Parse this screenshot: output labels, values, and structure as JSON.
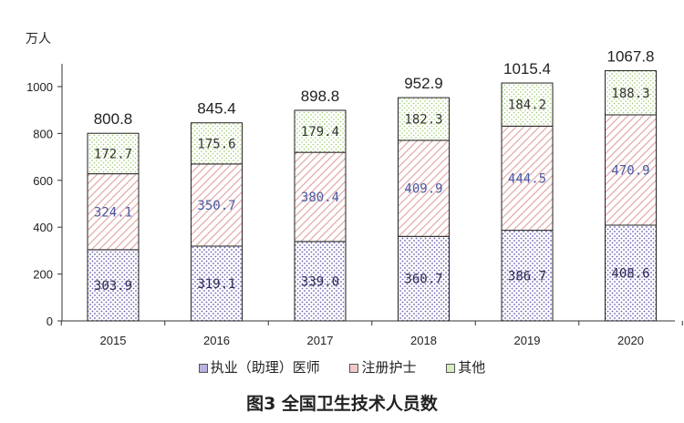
{
  "chart_data": {
    "type": "bar",
    "stacked": true,
    "title": "图3 全国卫生技术人员数",
    "ylabel": "万人",
    "ylim": [
      0,
      1000
    ],
    "yticks": [
      0,
      200,
      400,
      600,
      800,
      1000
    ],
    "categories": [
      "2015",
      "2016",
      "2017",
      "2018",
      "2019",
      "2020"
    ],
    "series": [
      {
        "name": "执业（助理）医师",
        "values": [
          303.9,
          319.1,
          339.0,
          360.7,
          386.7,
          408.6
        ],
        "labels": [
          "303.9",
          "319.1",
          "339.0",
          "360.7",
          "386.7",
          "408.6"
        ],
        "color": "#6b5fb0"
      },
      {
        "name": "注册护士",
        "values": [
          324.1,
          350.7,
          380.4,
          409.9,
          444.5,
          470.9
        ],
        "labels": [
          "324.1",
          "350.7",
          "380.4",
          "409.9",
          "444.5",
          "470.9"
        ],
        "color": "#e0a0a0"
      },
      {
        "name": "其他",
        "values": [
          172.7,
          175.6,
          179.4,
          182.3,
          184.2,
          188.3
        ],
        "labels": [
          "172.7",
          "175.6",
          "179.4",
          "182.3",
          "184.2",
          "188.3"
        ],
        "color": "#9cc96b"
      }
    ],
    "totals": [
      "800.8",
      "845.4",
      "898.8",
      "952.9",
      "1015.4",
      "1067.8"
    ],
    "legend_position": "bottom",
    "grid": false
  }
}
